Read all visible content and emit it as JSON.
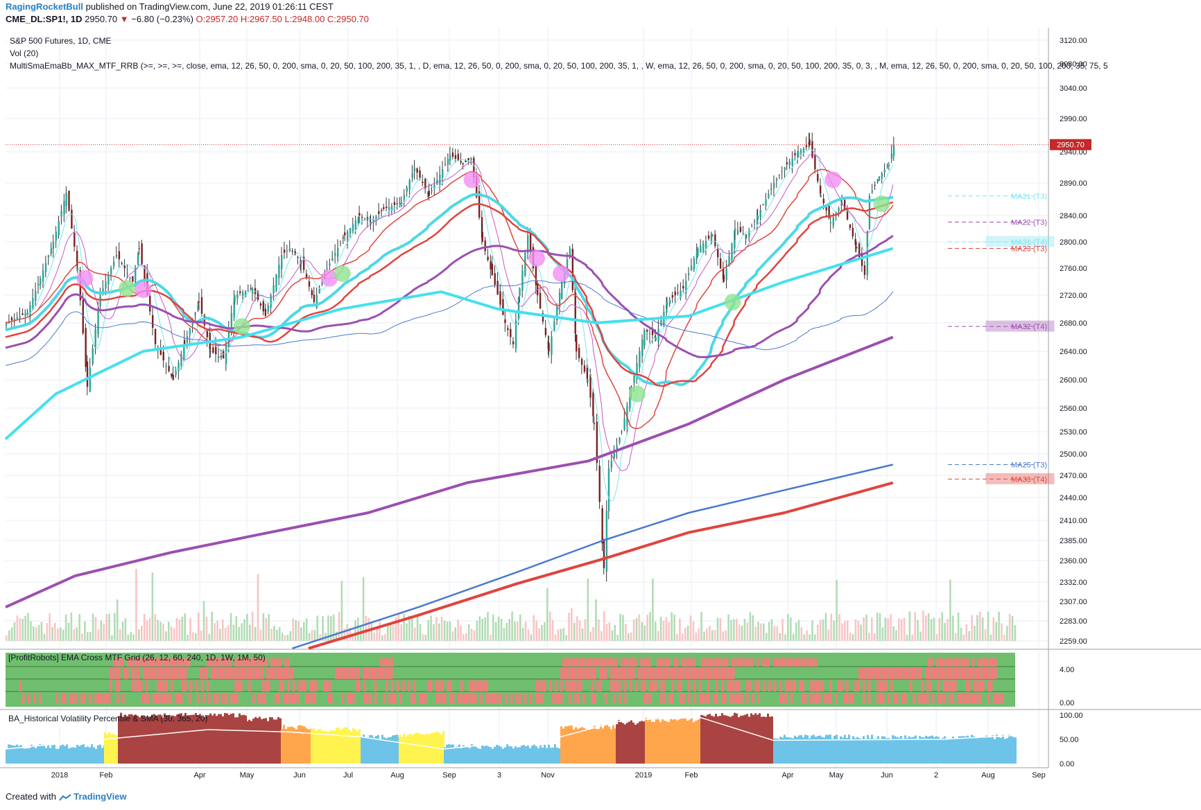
{
  "header": {
    "author": "RagingRocketBull",
    "published_text": "published on TradingView.com, June 22, 2019 01:26:11 CEST",
    "symbol": "CME_DL:SP1!, 1D",
    "last": "2950.70",
    "change_arrow": "▼",
    "change": "−6.80 (−0.23%)",
    "ohlc": "O:2957.20 H:2967.50 L:2948.00 C:2950.70"
  },
  "legend": {
    "title": "S&P 500 Futures, 1D, CME",
    "vol": "Vol (20)",
    "indicator": "MultiSmaEmaBb_MAX_MTF_RRB (>=, >=, >=, close, ema, 12, 26, 50, 0, 200, sma, 0, 20, 50, 100, 200, 35, 1, , D, ema, 12, 26, 50, 0, 200, sma, 0, 20, 50, 100, 200, 35, 1, , W, ema, 12, 26, 50, 0, 200, sma, 0, 20, 50, 100, 200, 35, 0, 3, , M, ema, 12, 26, 50, 0, 200, sma, 0, 20, 50, 100, 200, 35, 75, 5",
    "pane2": "[ProfitRobots] EMA Cross MTF Grid (26, 12, 60, 240, 1D, 1W, 1M, 50)",
    "pane3": "BA_Historical Volatility Percentile & SMA (30, 365, 20)"
  },
  "footer": {
    "prefix": "Created with",
    "brand": "TradingView"
  },
  "colors": {
    "up": "#26a69a",
    "down": "#7b1f1f",
    "cyan": "#4dd8e6",
    "red": "#e0443e",
    "purple": "#9c4fb0",
    "blue": "#4a79d0",
    "vol_up": "#a5d6a7",
    "vol_down": "#f8bbbb",
    "grid_green": "#6fbf6f",
    "grid_red": "#f47c7c",
    "hv_blue": "#6ec3e8",
    "hv_yellow": "#fff44f",
    "hv_orange": "#ffa64d",
    "hv_brown": "#a94442"
  },
  "chart_data": [
    {
      "type": "candlestick",
      "title": "S&P 500 Futures, 1D, CME",
      "last_price": 2950.7,
      "price_ticks": [
        3120.0,
        3080.0,
        3040.0,
        2990.0,
        2940.0,
        2890.0,
        2840.0,
        2800.0,
        2760.0,
        2720.0,
        2680.0,
        2640.0,
        2600.0,
        2560.0,
        2530.0,
        2500.0,
        2470.0,
        2440.0,
        2410.0,
        2385.0,
        2360.0,
        2332.0,
        2307.0,
        2283.0,
        2259.0
      ],
      "x_ticks": [
        "2018",
        "Feb",
        "Apr",
        "May",
        "Jun",
        "Jul",
        "Aug",
        "Sep",
        "3",
        "Nov",
        "2019",
        "Feb",
        "Apr",
        "May",
        "Jun",
        "2",
        "Aug",
        "Sep"
      ],
      "x_labels_secondary": [
        "",
        "",
        "",
        "",
        "",
        "",
        "",
        "",
        "",
        "",
        "",
        "",
        "",
        "",
        "",
        "",
        "",
        ""
      ],
      "close_path": [
        [
          "2017-12-20",
          2680
        ],
        [
          "2018-01-02",
          2695
        ],
        [
          "2018-01-10",
          2745
        ],
        [
          "2018-01-18",
          2800
        ],
        [
          "2018-01-26",
          2875
        ],
        [
          "2018-02-02",
          2760
        ],
        [
          "2018-02-08",
          2590
        ],
        [
          "2018-02-16",
          2720
        ],
        [
          "2018-02-26",
          2780
        ],
        [
          "2018-03-08",
          2740
        ],
        [
          "2018-03-12",
          2790
        ],
        [
          "2018-03-22",
          2650
        ],
        [
          "2018-04-02",
          2600
        ],
        [
          "2018-04-09",
          2650
        ],
        [
          "2018-04-18",
          2710
        ],
        [
          "2018-04-25",
          2640
        ],
        [
          "2018-05-03",
          2630
        ],
        [
          "2018-05-10",
          2720
        ],
        [
          "2018-05-21",
          2730
        ],
        [
          "2018-05-29",
          2690
        ],
        [
          "2018-06-08",
          2780
        ],
        [
          "2018-06-13",
          2790
        ],
        [
          "2018-06-20",
          2770
        ],
        [
          "2018-06-28",
          2710
        ],
        [
          "2018-07-06",
          2760
        ],
        [
          "2018-07-17",
          2810
        ],
        [
          "2018-07-26",
          2840
        ],
        [
          "2018-08-02",
          2830
        ],
        [
          "2018-08-10",
          2850
        ],
        [
          "2018-08-21",
          2860
        ],
        [
          "2018-08-29",
          2915
        ],
        [
          "2018-09-07",
          2870
        ],
        [
          "2018-09-20",
          2935
        ],
        [
          "2018-09-28",
          2920
        ],
        [
          "2018-10-03",
          2930
        ],
        [
          "2018-10-10",
          2800
        ],
        [
          "2018-10-16",
          2750
        ],
        [
          "2018-10-24",
          2680
        ],
        [
          "2018-10-29",
          2650
        ],
        [
          "2018-11-02",
          2730
        ],
        [
          "2018-11-07",
          2810
        ],
        [
          "2018-11-13",
          2720
        ],
        [
          "2018-11-20",
          2640
        ],
        [
          "2018-11-28",
          2740
        ],
        [
          "2018-12-03",
          2790
        ],
        [
          "2018-12-07",
          2640
        ],
        [
          "2018-12-14",
          2600
        ],
        [
          "2018-12-18",
          2540
        ],
        [
          "2018-12-24",
          2350
        ],
        [
          "2018-12-27",
          2480
        ],
        [
          "2019-01-04",
          2530
        ],
        [
          "2019-01-10",
          2590
        ],
        [
          "2019-01-18",
          2670
        ],
        [
          "2019-01-25",
          2660
        ],
        [
          "2019-02-01",
          2710
        ],
        [
          "2019-02-11",
          2730
        ],
        [
          "2019-02-20",
          2790
        ],
        [
          "2019-03-01",
          2810
        ],
        [
          "2019-03-08",
          2740
        ],
        [
          "2019-03-15",
          2820
        ],
        [
          "2019-03-22",
          2810
        ],
        [
          "2019-03-29",
          2840
        ],
        [
          "2019-04-08",
          2890
        ],
        [
          "2019-04-16",
          2920
        ],
        [
          "2019-04-23",
          2940
        ],
        [
          "2019-04-30",
          2950
        ],
        [
          "2019-05-07",
          2870
        ],
        [
          "2019-05-13",
          2830
        ],
        [
          "2019-05-20",
          2860
        ],
        [
          "2019-05-29",
          2790
        ],
        [
          "2019-06-03",
          2750
        ],
        [
          "2019-06-06",
          2870
        ],
        [
          "2019-06-12",
          2900
        ],
        [
          "2019-06-18",
          2920
        ],
        [
          "2019-06-21",
          2950.7
        ]
      ],
      "ma_levels": [
        {
          "name": "MA21 (T3)",
          "value": 2870
        },
        {
          "name": "MA22 (T3)",
          "value": 2830
        },
        {
          "name": "MA31 (T4)",
          "value": 2800
        },
        {
          "name": "MA23 (T3)",
          "value": 2790
        },
        {
          "name": "MA32 (T4)",
          "value": 2675
        },
        {
          "name": "MA25 (T3)",
          "value": 2485
        },
        {
          "name": "MA33 (T4)",
          "value": 2465
        }
      ]
    },
    {
      "type": "heatmap",
      "title": "[ProfitRobots] EMA Cross MTF Grid (26, 12, 60, 240, 1D, 1W, 1M, 50)",
      "y_ticks": [
        4.0,
        0.0
      ]
    },
    {
      "type": "area",
      "title": "BA_Historical Volatility Percentile & SMA (30, 365, 20)",
      "y_ticks": [
        100.0,
        50.0,
        0.0
      ]
    }
  ]
}
